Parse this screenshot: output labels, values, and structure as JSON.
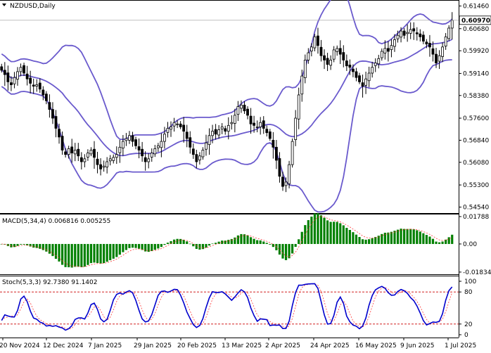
{
  "header": {
    "symbol_title": "NZDUSD,Daily",
    "macd_label": "MACD(5,34,4) 0.006816 0.005255",
    "stoch_label": "Stoch(5,3,3) 92.7380 91.1402"
  },
  "colors": {
    "bollinger": "#6a5acd",
    "candle": "#000000",
    "macd_hist": "#008000",
    "macd_signal": "#ff3b3b",
    "stoch_main": "#0000cd",
    "stoch_signal": "#ff3b3b",
    "level_line": "#cc0000",
    "price_marker_bg": "#ffffff"
  },
  "chart_data": [
    {
      "type": "candlestick",
      "panel": "price",
      "title": "NZDUSD,Daily",
      "ylim": [
        0.5443,
        0.6157
      ],
      "y_ticks": [
        "0.61460",
        "0.60680",
        "0.59920",
        "0.59140",
        "0.58380",
        "0.57600",
        "0.56840",
        "0.56080",
        "0.55300",
        "0.54540"
      ],
      "current_price": "0.60970",
      "x_tick_labels": [
        "20 Nov 2024",
        "12 Dec 2024",
        "7 Jan 2025",
        "29 Jan 2025",
        "20 Feb 2025",
        "13 Mar 2025",
        "2 Apr 2025",
        "24 Apr 2025",
        "16 May 2025",
        "9 Jun 2025",
        "1 Jul 2025"
      ],
      "close": [
        0.5925,
        0.591,
        0.5885,
        0.5875,
        0.59,
        0.592,
        0.5935,
        0.5915,
        0.5895,
        0.588,
        0.587,
        0.5875,
        0.586,
        0.584,
        0.582,
        0.579,
        0.576,
        0.5725,
        0.5695,
        0.565,
        0.5635,
        0.5655,
        0.564,
        0.565,
        0.563,
        0.561,
        0.562,
        0.564,
        0.565,
        0.5625,
        0.56,
        0.5585,
        0.5595,
        0.561,
        0.562,
        0.5625,
        0.5635,
        0.566,
        0.568,
        0.569,
        0.57,
        0.568,
        0.5665,
        0.565,
        0.563,
        0.561,
        0.562,
        0.564,
        0.5655,
        0.5665,
        0.568,
        0.5705,
        0.5725,
        0.573,
        0.5745,
        0.574,
        0.573,
        0.5715,
        0.569,
        0.566,
        0.5635,
        0.561,
        0.563,
        0.565,
        0.5675,
        0.57,
        0.5715,
        0.5705,
        0.572,
        0.573,
        0.5715,
        0.5735,
        0.5745,
        0.577,
        0.58,
        0.5805,
        0.5785,
        0.577,
        0.574,
        0.5735,
        0.573,
        0.5745,
        0.5725,
        0.571,
        0.569,
        0.566,
        0.5615,
        0.556,
        0.5525,
        0.554,
        0.56,
        0.568,
        0.576,
        0.584,
        0.5905,
        0.596,
        0.5985,
        0.6005,
        0.604,
        0.601,
        0.5975,
        0.596,
        0.5945,
        0.596,
        0.5995,
        0.6,
        0.598,
        0.596,
        0.594,
        0.5935,
        0.592,
        0.59,
        0.5885,
        0.587,
        0.5895,
        0.5915,
        0.5935,
        0.595,
        0.5965,
        0.599,
        0.6,
        0.599,
        0.601,
        0.603,
        0.6045,
        0.606,
        0.6045,
        0.6055,
        0.6065,
        0.606,
        0.605,
        0.604,
        0.6025,
        0.6015,
        0.6005,
        0.598,
        0.595,
        0.5975,
        0.6005,
        0.604,
        0.607,
        0.6097
      ]
    },
    {
      "type": "bar",
      "panel": "macd",
      "title": "MACD(5,34,4)",
      "ylim": [
        -0.0193,
        0.0188
      ],
      "y_ticks": [
        "0.01788",
        "0.00",
        "-0.018341"
      ],
      "macd_value": 0.006816,
      "signal_value": 0.005255
    },
    {
      "type": "line",
      "panel": "stochastic",
      "title": "Stoch(5,3,3)",
      "ylim": [
        0,
        100
      ],
      "levels": [
        20,
        80
      ],
      "y_ticks": [
        "100",
        "80",
        "20",
        "0"
      ],
      "main_value": 92.738,
      "signal_value": 91.1402
    }
  ]
}
